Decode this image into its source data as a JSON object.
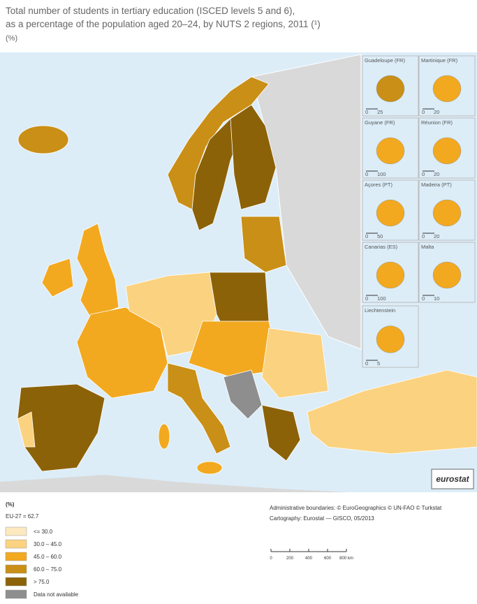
{
  "title": [
    "Total number of students in tertiary education (ISCED levels 5 and 6),",
    "as a percentage of the population aged 20–24, by NUTS 2 regions, 2011 (¹)",
    "(%)"
  ],
  "insets": [
    {
      "label": "Guadeloupe (FR)",
      "scale": [
        "0",
        "25"
      ]
    },
    {
      "label": "Martinique (FR)",
      "scale": [
        "0",
        "20"
      ]
    },
    {
      "label": "Guyane (FR)",
      "scale": [
        "0",
        "100"
      ]
    },
    {
      "label": "Réunion (FR)",
      "scale": [
        "0",
        "20"
      ]
    },
    {
      "label": "Açores (PT)",
      "scale": [
        "0",
        "50"
      ]
    },
    {
      "label": "Madeira (PT)",
      "scale": [
        "0",
        "20"
      ]
    },
    {
      "label": "Canarias (ES)",
      "scale": [
        "0",
        "100"
      ]
    },
    {
      "label": "Malta",
      "scale": [
        "0",
        "10"
      ]
    },
    {
      "label": "Liechtenstein",
      "scale": [
        "0",
        "5"
      ]
    }
  ],
  "legend": {
    "unit": "(%)",
    "eu": "EU-27 = 62.7",
    "classes": [
      {
        "label": "<= 30.0",
        "color": "#fde9bf"
      },
      {
        "label": "30.0 – 45.0",
        "color": "#fbd27f"
      },
      {
        "label": "45.0 – 60.0",
        "color": "#f2a91f"
      },
      {
        "label": "60.0 – 75.0",
        "color": "#c98f16"
      },
      {
        "label": "> 75.0",
        "color": "#8c6208"
      },
      {
        "label": "Data not available",
        "color": "#8e8e8e"
      }
    ]
  },
  "credits": [
    "Administrative boundaries: © EuroGeographics © UN-FAO © Turkstat",
    "Cartography: Eurostat — GISCO, 05/2013"
  ],
  "scale_bar": [
    "0",
    "200",
    "400",
    "600",
    "800 km"
  ],
  "logo": "eurostat"
}
